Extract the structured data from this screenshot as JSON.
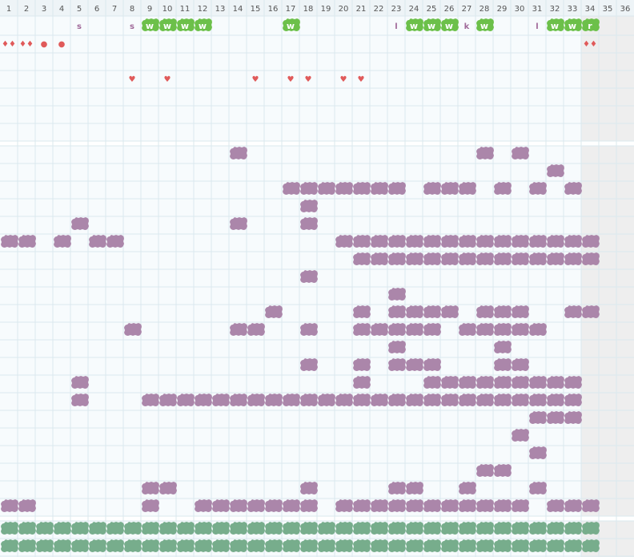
{
  "header": {
    "columns": [
      "1",
      "2",
      "3",
      "4",
      "5",
      "6",
      "7",
      "8",
      "9",
      "10",
      "11",
      "12",
      "13",
      "14",
      "15",
      "16",
      "17",
      "18",
      "19",
      "20",
      "21",
      "22",
      "23",
      "24",
      "25",
      "26",
      "27",
      "28",
      "29",
      "30",
      "31",
      "32",
      "33",
      "34",
      "35",
      "36"
    ]
  },
  "top": {
    "rows": [
      [
        {
          "col": 5,
          "text": "s",
          "badge": false
        },
        {
          "col": 8,
          "text": "s",
          "badge": false
        },
        {
          "col": 9,
          "text": "w",
          "badge": true
        },
        {
          "col": 10,
          "text": "w",
          "badge": true
        },
        {
          "col": 11,
          "text": "w",
          "badge": true
        },
        {
          "col": 12,
          "text": "w",
          "badge": true
        },
        {
          "col": 17,
          "text": "w",
          "badge": true
        },
        {
          "col": 23,
          "text": "l",
          "badge": false
        },
        {
          "col": 24,
          "text": "w",
          "badge": true
        },
        {
          "col": 25,
          "text": "w",
          "badge": true
        },
        {
          "col": 26,
          "text": "w",
          "badge": true
        },
        {
          "col": 27,
          "text": "k",
          "badge": false
        },
        {
          "col": 28,
          "text": "w",
          "badge": true
        },
        {
          "col": 31,
          "text": "l",
          "badge": false
        },
        {
          "col": 32,
          "text": "w",
          "badge": true
        },
        {
          "col": 33,
          "text": "w",
          "badge": true
        },
        {
          "col": 34,
          "text": "r",
          "badge": true
        }
      ],
      [
        {
          "col": 1,
          "text": "♦♦",
          "badge": false
        },
        {
          "col": 2,
          "text": "♦♦",
          "badge": false
        },
        {
          "col": 3,
          "text": "●",
          "badge": false
        },
        {
          "col": 4,
          "text": "●",
          "badge": false
        },
        {
          "col": 34,
          "text": "♦♦",
          "badge": false
        }
      ],
      [],
      [
        {
          "col": 8,
          "text": "♥",
          "badge": false
        },
        {
          "col": 10,
          "text": "♥",
          "badge": false
        },
        {
          "col": 15,
          "text": "♥",
          "badge": false
        },
        {
          "col": 17,
          "text": "♥",
          "badge": false
        },
        {
          "col": 18,
          "text": "♥",
          "badge": false
        },
        {
          "col": 20,
          "text": "♥",
          "badge": false
        },
        {
          "col": 21,
          "text": "♥",
          "badge": false
        }
      ],
      [],
      [],
      []
    ]
  },
  "main": {
    "rows": [
      [
        14,
        28,
        30
      ],
      [
        32
      ],
      [
        17,
        18,
        19,
        20,
        21,
        22,
        23,
        25,
        26,
        27,
        29,
        31,
        33
      ],
      [
        18
      ],
      [
        5,
        14,
        18
      ],
      [
        1,
        2,
        4,
        6,
        7,
        20,
        21,
        22,
        23,
        24,
        25,
        26,
        27,
        28,
        29,
        30,
        31,
        32,
        33,
        34
      ],
      [
        21,
        22,
        23,
        24,
        25,
        26,
        27,
        28,
        29,
        30,
        31,
        32,
        33,
        34
      ],
      [
        18
      ],
      [
        23
      ],
      [
        16,
        21,
        23,
        24,
        25,
        26,
        28,
        29,
        30,
        33,
        34
      ],
      [
        8,
        14,
        15,
        18,
        21,
        22,
        23,
        24,
        25,
        27,
        28,
        29,
        30,
        31
      ],
      [
        23,
        29
      ],
      [
        18,
        21,
        23,
        24,
        25,
        29,
        30
      ],
      [
        5,
        21,
        25,
        26,
        27,
        28,
        29,
        30,
        31,
        32,
        33
      ],
      [
        5,
        9,
        10,
        11,
        12,
        13,
        14,
        15,
        16,
        17,
        18,
        19,
        20,
        21,
        22,
        23,
        24,
        25,
        26,
        27,
        28,
        29,
        30,
        31,
        32,
        33
      ],
      [
        31,
        32,
        33
      ],
      [
        30
      ],
      [
        31
      ],
      [
        28,
        29
      ],
      [
        9,
        10,
        18,
        23,
        24,
        27,
        31
      ],
      [
        1,
        2,
        9,
        12,
        13,
        14,
        15,
        16,
        17,
        18,
        20,
        21,
        22,
        23,
        24,
        25,
        26,
        27,
        28,
        29,
        30,
        32,
        33,
        34
      ]
    ]
  },
  "bottom": {
    "rows": [
      [
        1,
        2,
        3,
        4,
        5,
        6,
        7,
        8,
        9,
        10,
        11,
        12,
        13,
        14,
        15,
        16,
        17,
        18,
        19,
        20,
        21,
        22,
        23,
        24,
        25,
        26,
        27,
        28,
        29,
        30,
        31,
        32,
        33,
        34
      ],
      [
        1,
        2,
        3,
        4,
        5,
        6,
        7,
        8,
        9,
        10,
        11,
        12,
        13,
        14,
        15,
        16,
        17,
        18,
        19,
        20,
        21,
        22,
        23,
        24,
        25,
        26,
        27,
        28,
        29,
        30,
        31,
        32,
        33,
        34
      ]
    ]
  }
}
